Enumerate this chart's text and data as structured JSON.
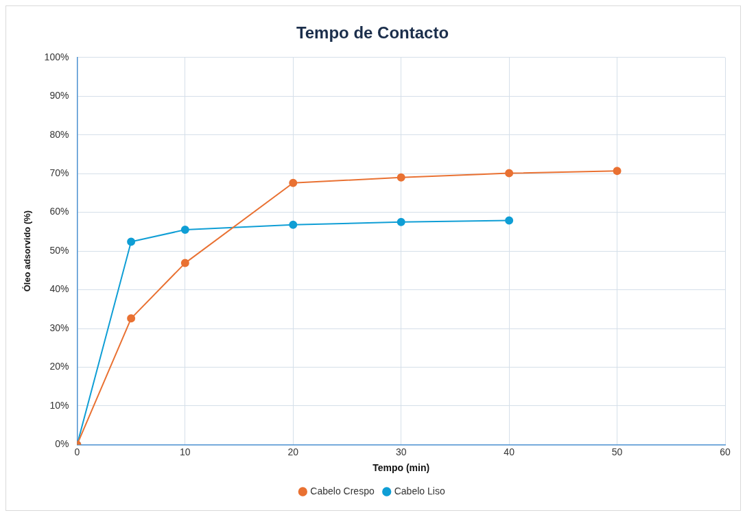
{
  "chart_data": {
    "type": "line",
    "title": "Tempo de Contacto",
    "xlabel": "Tempo (min)",
    "ylabel": "Óleo adsorvido (%)",
    "series": [
      {
        "name": "Cabelo Crespo",
        "color": "#e97132",
        "x": [
          0,
          5,
          10,
          20,
          30,
          40,
          50
        ],
        "values": [
          0,
          32.6,
          46.9,
          67.6,
          69.0,
          70.1,
          70.7
        ]
      },
      {
        "name": "Cabelo Liso",
        "color": "#0f9ed5",
        "x": [
          0,
          5,
          10,
          20,
          30,
          40
        ],
        "values": [
          0,
          52.4,
          55.5,
          56.8,
          57.5,
          57.9
        ]
      }
    ],
    "xlim": [
      0,
      60
    ],
    "xticks": [
      0,
      10,
      20,
      30,
      40,
      50,
      60
    ],
    "ylim": [
      0,
      100
    ],
    "yticks": [
      {
        "value": 0,
        "label": "0%"
      },
      {
        "value": 10,
        "label": "10%"
      },
      {
        "value": 20,
        "label": "20%"
      },
      {
        "value": 30,
        "label": "30%"
      },
      {
        "value": 40,
        "label": "40%"
      },
      {
        "value": 50,
        "label": "50%"
      },
      {
        "value": 60,
        "label": "60%"
      },
      {
        "value": 70,
        "label": "70%"
      },
      {
        "value": 80,
        "label": "80%"
      },
      {
        "value": 90,
        "label": "90%"
      },
      {
        "value": 100,
        "label": "100%"
      }
    ],
    "grid": true,
    "legend": "bottom",
    "marker": "circle",
    "line_style": "solid"
  }
}
